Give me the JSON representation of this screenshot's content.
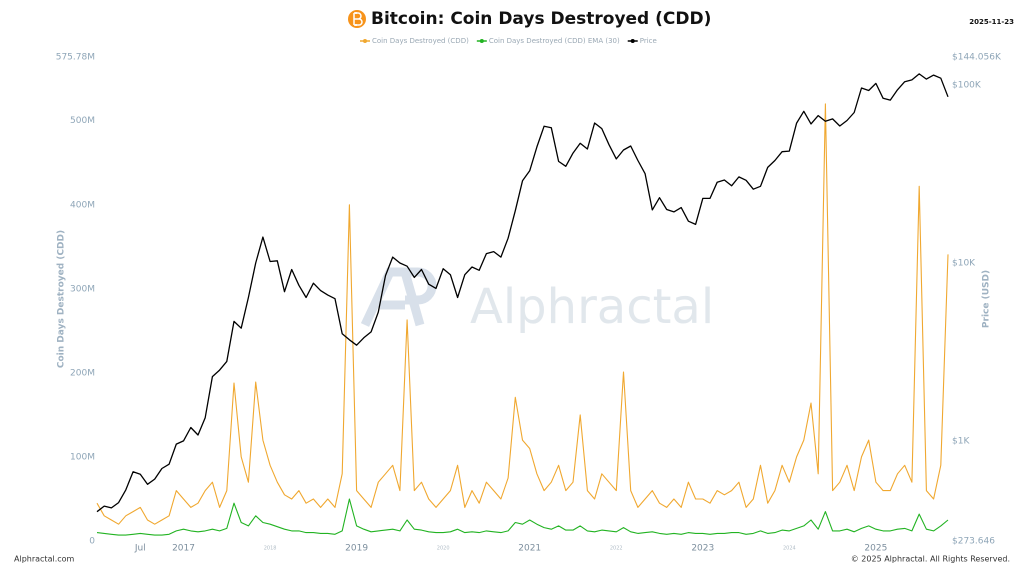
{
  "chart_data": {
    "type": "line",
    "title": "Bitcoin: Coin Days Destroyed (CDD)",
    "date": "2025-11-23",
    "ylabel": "Coin Days Destroyed (CDD)",
    "y2label": "Price (USD)",
    "watermark": "Alphractal",
    "source": "Alphractal.com",
    "copyright": "© 2025 Alphractal. All Rights Reserved.",
    "y2log": true,
    "xlim": [
      "2016-01",
      "2025-11"
    ],
    "xticks": [
      {
        "value": "2016-07",
        "label": "Jul"
      },
      {
        "value": "2017-01",
        "label": "2017"
      },
      {
        "value": "2018-01",
        "label": "2018"
      },
      {
        "value": "2019-01",
        "label": "2019"
      },
      {
        "value": "2020-01",
        "label": "2020"
      },
      {
        "value": "2021-01",
        "label": "2021"
      },
      {
        "value": "2022-01",
        "label": "2022"
      },
      {
        "value": "2023-01",
        "label": "2023"
      },
      {
        "value": "2024-01",
        "label": "2024"
      },
      {
        "value": "2025-01",
        "label": "2025"
      }
    ],
    "ylim": [
      0,
      575780000
    ],
    "yticks": [
      0,
      {
        "value": 100000000,
        "label": "100M"
      },
      {
        "value": 200000000,
        "label": "200M"
      },
      {
        "value": 300000000,
        "label": "300M"
      },
      {
        "value": 400000000,
        "label": "400M"
      },
      {
        "value": 500000000,
        "label": "500M"
      },
      {
        "value": 575780000,
        "label": "575.78M"
      }
    ],
    "y2lim": [
      273.646,
      144056
    ],
    "y2ticks": [
      {
        "value": 273.646,
        "label": "$273.646"
      },
      {
        "value": 1000,
        "label": "$1K"
      },
      {
        "value": 10000,
        "label": "$10K"
      },
      {
        "value": 100000,
        "label": "$100K"
      },
      {
        "value": 144056,
        "label": "$144.056K"
      }
    ],
    "x": [
      "2016-01",
      "2016-02",
      "2016-03",
      "2016-04",
      "2016-05",
      "2016-06",
      "2016-07",
      "2016-08",
      "2016-09",
      "2016-10",
      "2016-11",
      "2016-12",
      "2017-01",
      "2017-02",
      "2017-03",
      "2017-04",
      "2017-05",
      "2017-06",
      "2017-07",
      "2017-08",
      "2017-09",
      "2017-10",
      "2017-11",
      "2017-12",
      "2018-01",
      "2018-02",
      "2018-03",
      "2018-04",
      "2018-05",
      "2018-06",
      "2018-07",
      "2018-08",
      "2018-09",
      "2018-10",
      "2018-11",
      "2018-12",
      "2019-01",
      "2019-02",
      "2019-03",
      "2019-04",
      "2019-05",
      "2019-06",
      "2019-07",
      "2019-08",
      "2019-09",
      "2019-10",
      "2019-11",
      "2019-12",
      "2020-01",
      "2020-02",
      "2020-03",
      "2020-04",
      "2020-05",
      "2020-06",
      "2020-07",
      "2020-08",
      "2020-09",
      "2020-10",
      "2020-11",
      "2020-12",
      "2021-01",
      "2021-02",
      "2021-03",
      "2021-04",
      "2021-05",
      "2021-06",
      "2021-07",
      "2021-08",
      "2021-09",
      "2021-10",
      "2021-11",
      "2021-12",
      "2022-01",
      "2022-02",
      "2022-03",
      "2022-04",
      "2022-05",
      "2022-06",
      "2022-07",
      "2022-08",
      "2022-09",
      "2022-10",
      "2022-11",
      "2022-12",
      "2023-01",
      "2023-02",
      "2023-03",
      "2023-04",
      "2023-05",
      "2023-06",
      "2023-07",
      "2023-08",
      "2023-09",
      "2023-10",
      "2023-11",
      "2023-12",
      "2024-01",
      "2024-02",
      "2024-03",
      "2024-04",
      "2024-05",
      "2024-06",
      "2024-07",
      "2024-08",
      "2024-09",
      "2024-10",
      "2024-11",
      "2024-12",
      "2025-01",
      "2025-02",
      "2025-03",
      "2025-04",
      "2025-05",
      "2025-06",
      "2025-07",
      "2025-08",
      "2025-09",
      "2025-10",
      "2025-11"
    ],
    "series": [
      {
        "name": "Coin Days Destroyed (CDD)",
        "color": "#f0a830",
        "values": [
          45000000.0,
          30000000.0,
          25000000.0,
          20000000.0,
          30000000.0,
          35000000.0,
          40000000.0,
          25000000.0,
          20000000.0,
          25000000.0,
          30000000.0,
          60000000.0,
          50000000.0,
          40000000.0,
          45000000.0,
          60000000.0,
          70000000.0,
          40000000.0,
          60000000.0,
          188000000.0,
          100000000.0,
          70000000.0,
          189000000.0,
          120000000.0,
          90000000.0,
          70000000.0,
          55000000.0,
          50000000.0,
          60000000.0,
          45000000.0,
          50000000.0,
          40000000.0,
          50000000.0,
          40000000.0,
          80000000.0,
          400000000.0,
          60000000.0,
          50000000.0,
          40000000.0,
          70000000.0,
          80000000.0,
          90000000.0,
          60000000.0,
          263000000.0,
          60000000.0,
          70000000.0,
          50000000.0,
          40000000.0,
          50000000.0,
          60000000.0,
          90000000.0,
          40000000.0,
          60000000.0,
          45000000.0,
          70000000.0,
          60000000.0,
          50000000.0,
          75000000.0,
          171000000.0,
          120000000.0,
          110000000.0,
          80000000.0,
          60000000.0,
          70000000.0,
          90000000.0,
          60000000.0,
          70000000.0,
          150000000.0,
          60000000.0,
          50000000.0,
          80000000.0,
          70000000.0,
          60000000.0,
          201000000.0,
          60000000.0,
          40000000.0,
          50000000.0,
          60000000.0,
          45000000.0,
          40000000.0,
          50000000.0,
          40000000.0,
          70000000.0,
          50000000.0,
          50000000.0,
          45000000.0,
          60000000.0,
          55000000.0,
          60000000.0,
          70000000.0,
          40000000.0,
          50000000.0,
          90000000.0,
          45000000.0,
          60000000.0,
          90000000.0,
          70000000.0,
          100000000.0,
          120000000.0,
          164000000.0,
          80000000.0,
          520000000.0,
          60000000.0,
          70000000.0,
          90000000.0,
          60000000.0,
          100000000.0,
          120000000.0,
          70000000.0,
          60000000.0,
          60000000.0,
          80000000.0,
          90000000.0,
          70000000.0,
          422000000.0,
          60000000.0,
          50000000.0,
          90000000.0,
          341000000.0
        ]
      },
      {
        "name": "Coin Days Destroyed (CDD) EMA (30)",
        "color": "#22b322",
        "values": [
          10000000.0,
          9000000.0,
          8000000.0,
          7000000.0,
          7000000.0,
          8000000.0,
          9000000.0,
          8000000.0,
          7000000.0,
          7000000.0,
          8000000.0,
          12000000.0,
          14000000.0,
          12000000.0,
          11000000.0,
          12000000.0,
          14000000.0,
          12000000.0,
          15000000.0,
          45000000.0,
          22000000.0,
          18000000.0,
          30000000.0,
          22000000.0,
          20000000.0,
          17000000.0,
          14000000.0,
          12000000.0,
          12000000.0,
          10000000.0,
          10000000.0,
          9000000.0,
          9000000.0,
          8000000.0,
          12000000.0,
          50000000.0,
          18000000.0,
          14000000.0,
          11000000.0,
          12000000.0,
          13000000.0,
          14000000.0,
          12000000.0,
          25000000.0,
          14000000.0,
          13000000.0,
          11000000.0,
          10000000.0,
          10000000.0,
          11000000.0,
          14000000.0,
          10000000.0,
          11000000.0,
          10000000.0,
          12000000.0,
          11000000.0,
          10000000.0,
          12000000.0,
          22000000.0,
          20000000.0,
          25000000.0,
          20000000.0,
          16000000.0,
          14000000.0,
          18000000.0,
          13000000.0,
          13000000.0,
          18000000.0,
          12000000.0,
          11000000.0,
          13000000.0,
          12000000.0,
          11000000.0,
          16000000.0,
          11000000.0,
          9000000.0,
          10000000.0,
          11000000.0,
          9000000.0,
          8000000.0,
          9000000.0,
          8000000.0,
          10000000.0,
          9000000.0,
          9000000.0,
          8000000.0,
          9000000.0,
          9000000.0,
          10000000.0,
          10000000.0,
          8000000.0,
          9000000.0,
          12000000.0,
          9000000.0,
          10000000.0,
          13000000.0,
          12000000.0,
          15000000.0,
          18000000.0,
          25000000.0,
          14000000.0,
          35000000.0,
          12000000.0,
          12000000.0,
          14000000.0,
          11000000.0,
          15000000.0,
          18000000.0,
          14000000.0,
          12000000.0,
          12000000.0,
          14000000.0,
          15000000.0,
          12000000.0,
          32000000.0,
          14000000.0,
          12000000.0,
          18000000.0,
          25000000.0
        ]
      },
      {
        "name": "Price",
        "color": "#000000",
        "axis": "y2",
        "values": [
          400,
          430,
          420,
          450,
          530,
          670,
          650,
          570,
          610,
          700,
          740,
          960,
          1000,
          1190,
          1080,
          1350,
          2300,
          2500,
          2800,
          4700,
          4300,
          6400,
          10000,
          14000,
          10200,
          10300,
          6900,
          9200,
          7500,
          6400,
          7700,
          7000,
          6600,
          6300,
          4000,
          3700,
          3450,
          3800,
          4100,
          5300,
          8500,
          10800,
          10000,
          9600,
          8300,
          9200,
          7600,
          7200,
          9300,
          8600,
          6400,
          8600,
          9500,
          9100,
          11300,
          11600,
          10800,
          13800,
          19700,
          29000,
          33000,
          45000,
          58800,
          57700,
          37300,
          35000,
          41500,
          47100,
          43800,
          61300,
          57000,
          46300,
          38500,
          43200,
          45500,
          37700,
          31800,
          19900,
          23300,
          20000,
          19400,
          20500,
          17200,
          16500,
          23100,
          23100,
          28500,
          29300,
          27200,
          30500,
          29200,
          26000,
          27000,
          34500,
          37700,
          42300,
          42600,
          61200,
          71300,
          60600,
          67500,
          62700,
          64600,
          59000,
          63300,
          70200,
          96400,
          93400,
          102400,
          84400,
          82500,
          94200,
          104600,
          107100,
          115800,
          108200,
          114000,
          109500,
          86000
        ]
      }
    ]
  }
}
